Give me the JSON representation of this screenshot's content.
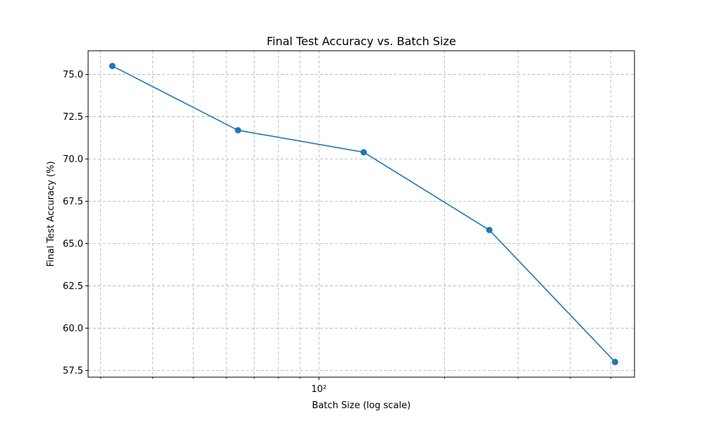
{
  "chart_data": {
    "type": "line",
    "title": "Final Test Accuracy vs. Batch Size",
    "xlabel": "Batch Size (log scale)",
    "ylabel": "Final Test Accuracy (%)",
    "x_scale": "log",
    "xlim": [
      28,
      570
    ],
    "ylim": [
      57.1,
      76.4
    ],
    "grid": true,
    "grid_which": "both",
    "x_major_ticks": [
      100
    ],
    "x_major_tick_labels": [
      "10²"
    ],
    "x_minor_ticks": [
      30,
      40,
      50,
      60,
      70,
      80,
      90,
      200,
      300,
      400,
      500
    ],
    "y_ticks": [
      57.5,
      60.0,
      62.5,
      65.0,
      67.5,
      70.0,
      72.5,
      75.0
    ],
    "y_tick_labels": [
      "57.5",
      "60.0",
      "62.5",
      "65.0",
      "67.5",
      "70.0",
      "72.5",
      "75.0"
    ],
    "series": [
      {
        "color": "#1f77b4",
        "marker": "circle",
        "x": [
          32,
          64,
          128,
          256,
          512
        ],
        "y": [
          75.5,
          71.7,
          70.4,
          65.8,
          58.0
        ]
      }
    ]
  }
}
